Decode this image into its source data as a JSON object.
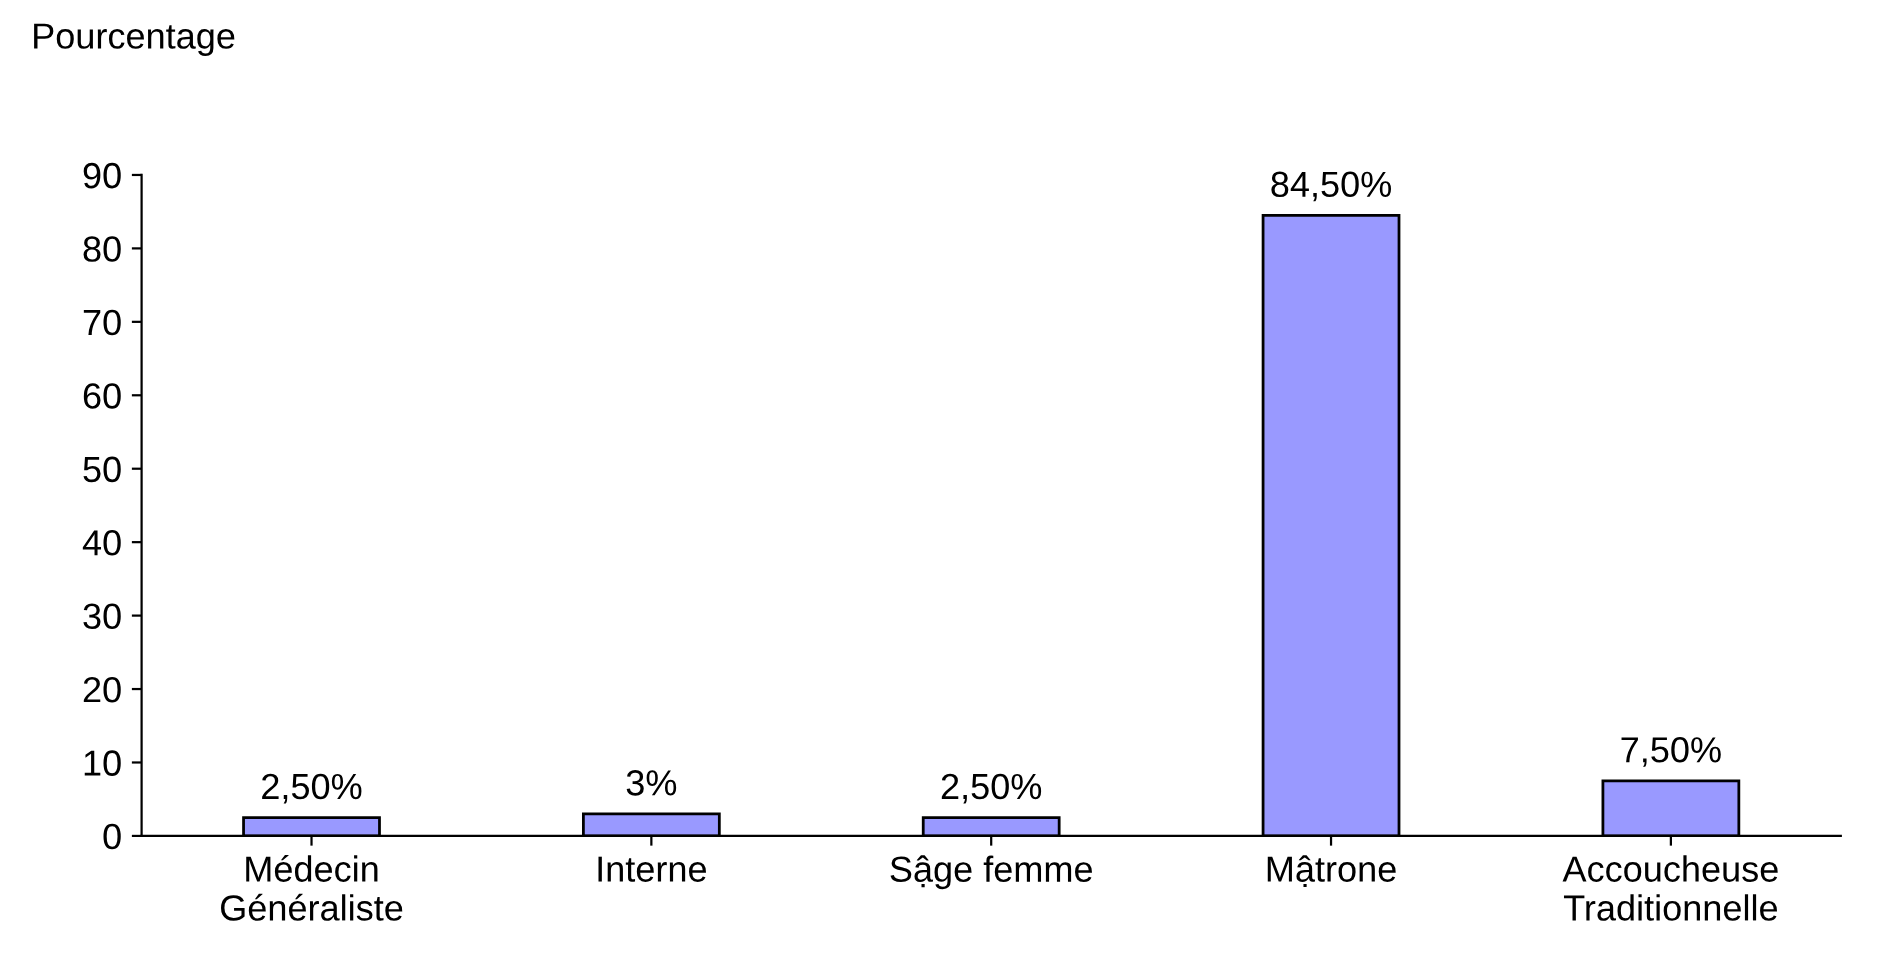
{
  "chart_data": {
    "type": "bar",
    "ylabel": "Pourcentage",
    "categories": [
      "Médecin\nGénéraliste",
      "Interne",
      "Sậge femme",
      "Mậtrone",
      "Accoucheuse\nTraditionnelle"
    ],
    "values": [
      2.5,
      3,
      2.5,
      84.5,
      7.5
    ],
    "value_labels": [
      "2,50%",
      "3%",
      "2,50%",
      "84,50%",
      "7,50%"
    ],
    "color": "#9999ff",
    "ylim": [
      0,
      90
    ],
    "yticks": [
      0,
      10,
      20,
      30,
      40,
      50,
      60,
      70,
      80,
      90
    ],
    "grid": false,
    "legend": false
  }
}
